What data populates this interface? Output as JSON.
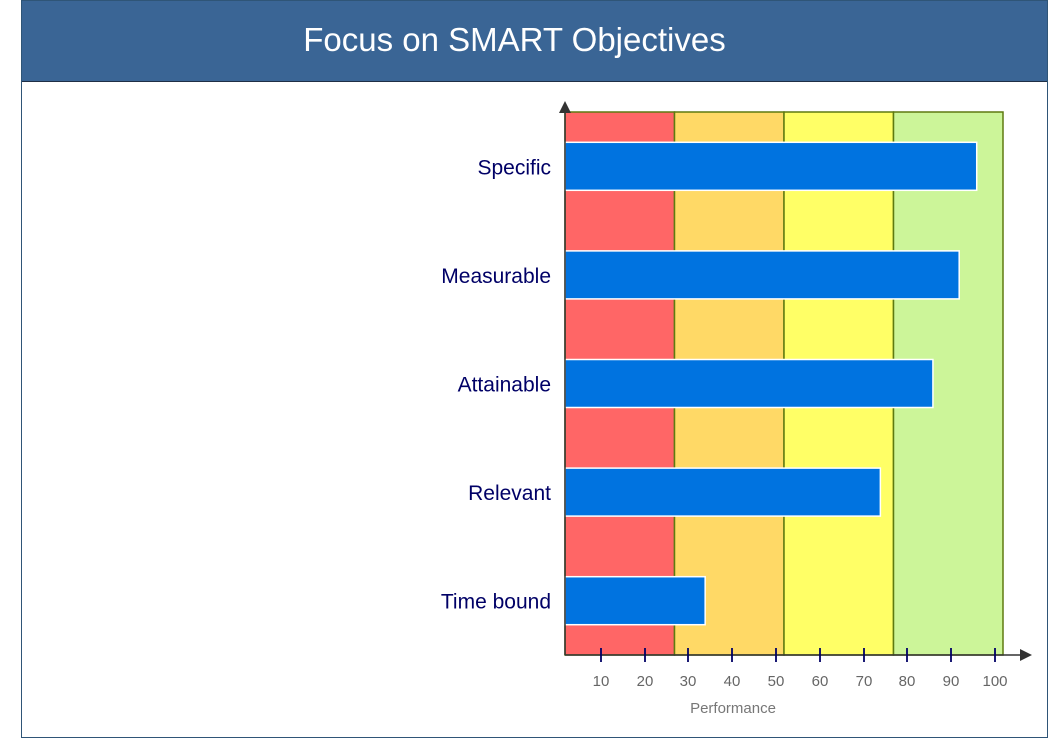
{
  "title": "Focus on SMART Objectives",
  "chart_data": {
    "type": "bar",
    "orientation": "horizontal",
    "title": "Focus on SMART Objectives",
    "xlabel": "Performance",
    "ylabel": "",
    "xlim": [
      0,
      100
    ],
    "xticks": [
      10,
      20,
      30,
      40,
      50,
      60,
      70,
      80,
      90,
      100
    ],
    "categories": [
      "Specific",
      "Measurable",
      "Attainable",
      "Relevant",
      "Time bound"
    ],
    "values": [
      94,
      90,
      84,
      72,
      32
    ],
    "bands": [
      {
        "from": 0,
        "to": 25,
        "color": "#ff6666"
      },
      {
        "from": 25,
        "to": 50,
        "color": "#ffd966"
      },
      {
        "from": 50,
        "to": 75,
        "color": "#ffff66"
      },
      {
        "from": 75,
        "to": 100,
        "color": "#ccf599"
      }
    ],
    "bar_color": "#0073e0",
    "label_color": "#000066",
    "grid": false
  }
}
